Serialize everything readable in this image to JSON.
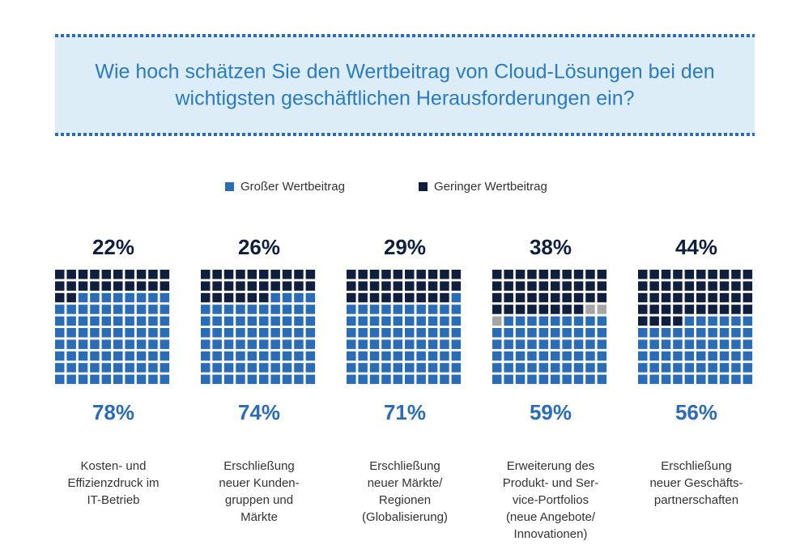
{
  "chart_data": {
    "type": "waffle",
    "title": [
      "Wie hoch schätzen Sie den Wertbeitrag von Cloud-Lösungen bei den",
      "wichtigsten geschäftlichen Herausforderungen ein?"
    ],
    "categories": [
      [
        "Kosten- und",
        "Effizienzdruck im",
        "IT-Betrieb"
      ],
      [
        "Erschließung",
        "neuer Kunden-",
        "gruppen und",
        "Märkte"
      ],
      [
        "Erschließung",
        "neuer Märkte/",
        "Regionen",
        "(Globalisierung)"
      ],
      [
        "Erweiterung des",
        "Produkt- und Ser-",
        "vice-Portfolios",
        "(neue Angebote/",
        "Innovationen)"
      ],
      [
        "Erschließung",
        "neuer Geschäfts-",
        "partnerschaften"
      ]
    ],
    "series": [
      {
        "name": "Großer Wertbeitrag",
        "color": "#2b6cb6",
        "values": [
          78,
          74,
          71,
          59,
          56
        ],
        "value_labels": [
          "78%",
          "74%",
          "71%",
          "59%",
          "56%"
        ]
      },
      {
        "name": "Geringer Wertbeitrag",
        "color": "#0f1f3d",
        "values": [
          22,
          26,
          29,
          38,
          44
        ],
        "value_labels": [
          "22%",
          "26%",
          "29%",
          "38%",
          "44%"
        ]
      }
    ],
    "unassigned_color": "#a6a6a6"
  }
}
